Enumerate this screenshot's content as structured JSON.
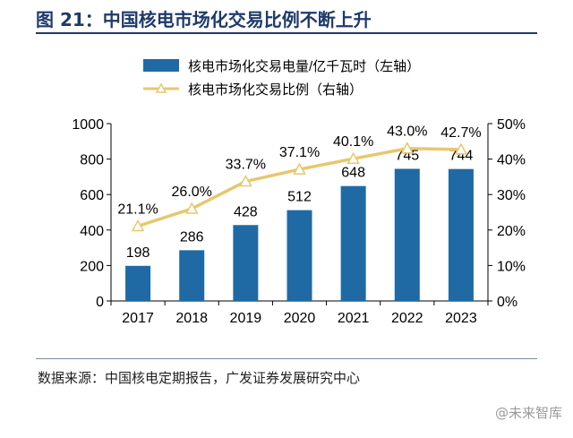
{
  "figure": {
    "title": "图 21：中国核电市场化交易比例不断上升",
    "source": "数据来源：中国核电定期报告，广发证券发展研究中心",
    "watermark": "@未来智库"
  },
  "colors": {
    "title": "#1f3a6b",
    "bar": "#1f6aa5",
    "line": "#e6c86e",
    "marker_fill": "#ffffff"
  },
  "chart_data": {
    "type": "bar",
    "title": "",
    "categories": [
      "2017",
      "2018",
      "2019",
      "2020",
      "2021",
      "2022",
      "2023"
    ],
    "series": [
      {
        "name": "核电市场化交易电量/亿千瓦时（左轴）",
        "type": "bar",
        "axis": "left",
        "values": [
          198,
          286,
          428,
          512,
          648,
          745,
          744
        ],
        "labels": [
          "198",
          "286",
          "428",
          "512",
          "648",
          "745",
          "744"
        ]
      },
      {
        "name": "核电市场化交易比例（右轴）",
        "type": "line",
        "axis": "right",
        "marker": "triangle-open",
        "values": [
          21.1,
          26.0,
          33.7,
          37.1,
          40.1,
          43.0,
          42.7
        ],
        "labels": [
          "21.1%",
          "26.0%",
          "33.7%",
          "37.1%",
          "40.1%",
          "43.0%",
          "42.7%"
        ]
      }
    ],
    "y_left": {
      "min": 0,
      "max": 1000,
      "ticks": [
        0,
        200,
        400,
        600,
        800,
        1000
      ],
      "tick_labels": [
        "0",
        "200",
        "400",
        "600",
        "800",
        "1000"
      ]
    },
    "y_right": {
      "min": 0,
      "max": 50,
      "ticks": [
        0,
        10,
        20,
        30,
        40,
        50
      ],
      "tick_labels": [
        "0%",
        "10%",
        "20%",
        "30%",
        "40%",
        "50%"
      ]
    },
    "xlabel": "",
    "ylabel": "",
    "grid": false,
    "legend_position": "top-left"
  }
}
